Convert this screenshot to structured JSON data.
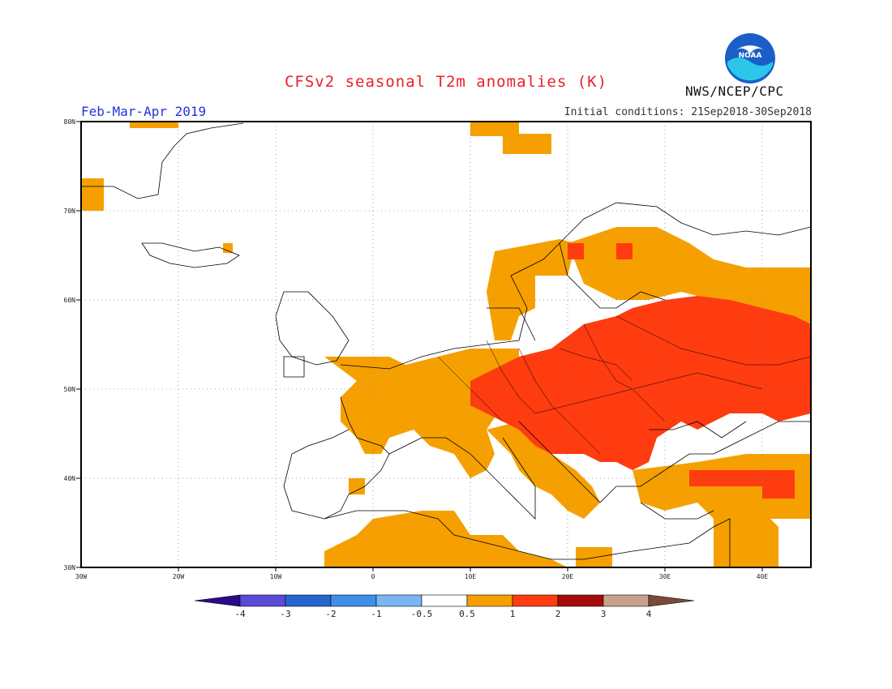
{
  "title": "CFSv2 seasonal T2m anomalies (K)",
  "season": "Feb-Mar-Apr 2019",
  "initial_conditions": "Initial conditions: 21Sep2018-30Sep2018",
  "agency": "NWS/NCEP/CPC",
  "logo_text": "NOAA",
  "colors": {
    "title": "#e8202a",
    "season": "#2233dd",
    "anom_05_1": "#f5a000",
    "anom_1_2": "#ff3b10",
    "land_outline": "#000000"
  },
  "map": {
    "lon_range": [
      -30,
      45
    ],
    "lat_range": [
      30,
      80
    ],
    "lat_labels": [
      "80N",
      "70N",
      "60N",
      "50N",
      "40N",
      "30N"
    ],
    "lon_labels": [
      "30W",
      "20W",
      "10W",
      "0",
      "10E",
      "20E",
      "30E",
      "40E"
    ],
    "grid": "dotted"
  },
  "colorbar": {
    "colors": [
      "#2a0a8c",
      "#5a4ad8",
      "#2466d0",
      "#3d8fe8",
      "#7ab7f2",
      "#ffffff",
      "#f5a000",
      "#ff3b10",
      "#a60a0a",
      "#c9a08c",
      "#7a4a38"
    ],
    "labels": [
      "-4",
      "-3",
      "-2",
      "-1",
      "-0.5",
      "0.5",
      "1",
      "2",
      "3",
      "4"
    ]
  }
}
